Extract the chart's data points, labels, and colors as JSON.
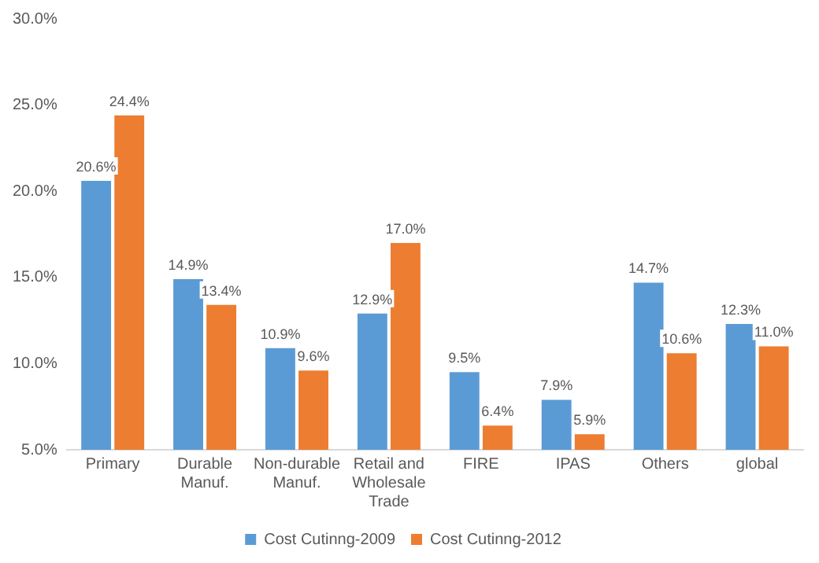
{
  "chart_data": {
    "type": "bar",
    "categories": [
      "Primary",
      "Durable Manuf.",
      "Non-durable Manuf.",
      "Retail and Wholesale Trade",
      "FIRE",
      "IPAS",
      "Others",
      "global"
    ],
    "series": [
      {
        "name": "Cost Cutinng-2009",
        "color": "#5b9bd5",
        "values": [
          20.6,
          14.9,
          10.9,
          12.9,
          9.5,
          7.9,
          14.7,
          12.3
        ],
        "value_labels": [
          "20.6%",
          "14.9%",
          "10.9%",
          "12.9%",
          "9.5%",
          "7.9%",
          "14.7%",
          "12.3%"
        ]
      },
      {
        "name": "Cost Cutinng-2012",
        "color": "#ed7d31",
        "values": [
          24.4,
          13.4,
          9.6,
          17.0,
          6.4,
          5.9,
          10.6,
          11.0
        ],
        "value_labels": [
          "24.4%",
          "13.4%",
          "9.6%",
          "17.0%",
          "6.4%",
          "5.9%",
          "10.6%",
          "11.0%"
        ]
      }
    ],
    "ylim": [
      5,
      30
    ],
    "yticks": [
      {
        "value": 5,
        "label": "5.0%"
      },
      {
        "value": 10,
        "label": "10.0%"
      },
      {
        "value": 15,
        "label": "15.0%"
      },
      {
        "value": 20,
        "label": "20.0%"
      },
      {
        "value": 25,
        "label": "25.0%"
      },
      {
        "value": 30,
        "label": "30.0%"
      }
    ],
    "grid": false,
    "legend": "bottom"
  }
}
